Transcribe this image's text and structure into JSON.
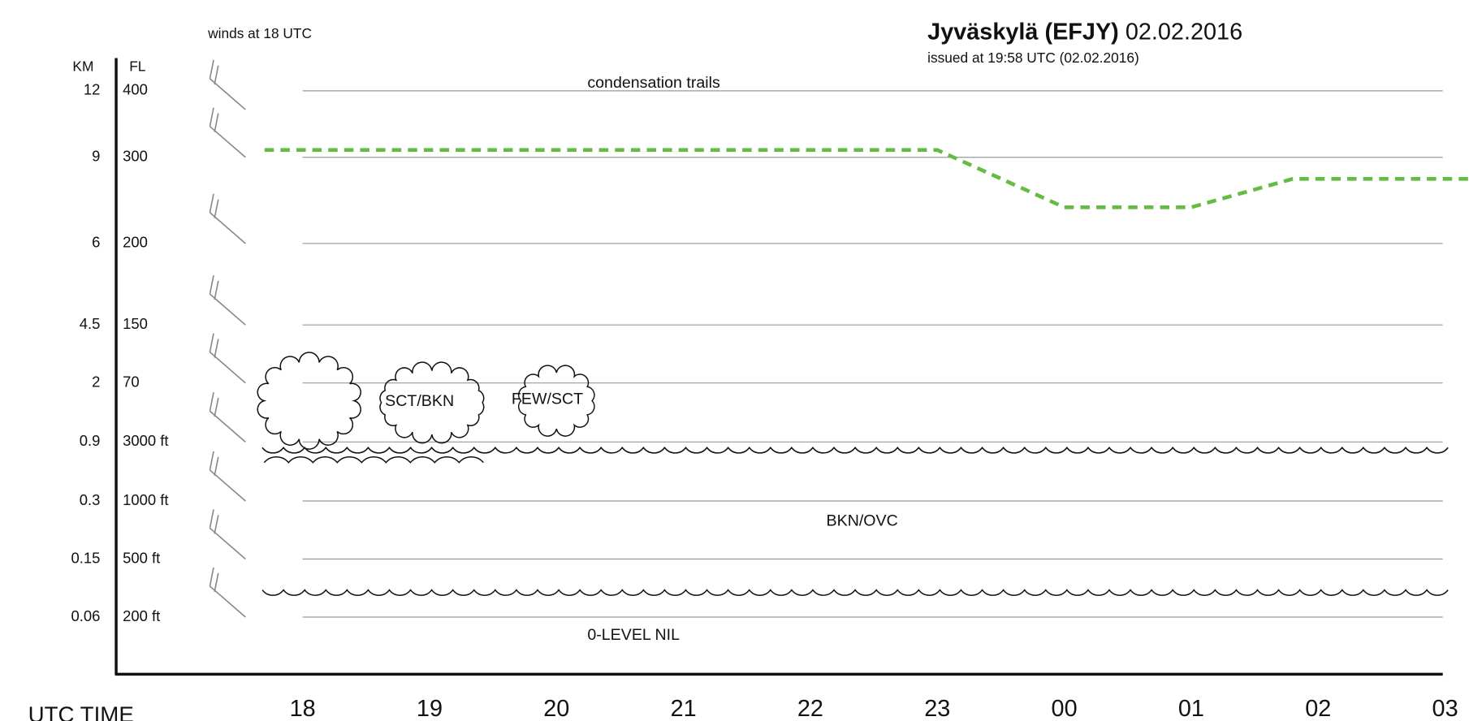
{
  "header": {
    "station": "Jyväskylä (EFJY)",
    "date": "02.02.2016",
    "issued": "issued at 19:58 UTC (02.02.2016)"
  },
  "winds_label": "winds at 18 UTC",
  "axis": {
    "km_title": "KM",
    "fl_title": "FL",
    "time_title": "UTC TIME"
  },
  "levels": [
    {
      "km": "12",
      "fl": "400"
    },
    {
      "km": "9",
      "fl": "300"
    },
    {
      "km": "6",
      "fl": "200"
    },
    {
      "km": "4.5",
      "fl": "150"
    },
    {
      "km": "2",
      "fl": "70"
    },
    {
      "km": "0.9",
      "fl": "3000 ft"
    },
    {
      "km": "0.3",
      "fl": "1000 ft"
    },
    {
      "km": "0.15",
      "fl": "500 ft"
    },
    {
      "km": "0.06",
      "fl": "200 ft"
    }
  ],
  "times": [
    "18",
    "19",
    "20",
    "21",
    "22",
    "23",
    "00",
    "01",
    "02",
    "03"
  ],
  "annotations": {
    "contrails": "condensation trails",
    "scattered": "SCT/BKN",
    "few": "FEW/SCT",
    "bkn_ovc": "BKN/OVC",
    "zero_level": "0-LEVEL NIL"
  },
  "contrail_line": {
    "color": "#66bb44",
    "hours": [
      -0.3,
      5,
      6,
      7,
      7.8,
      9.2
    ],
    "fl": [
      311,
      311,
      242,
      242,
      275,
      275
    ]
  }
}
